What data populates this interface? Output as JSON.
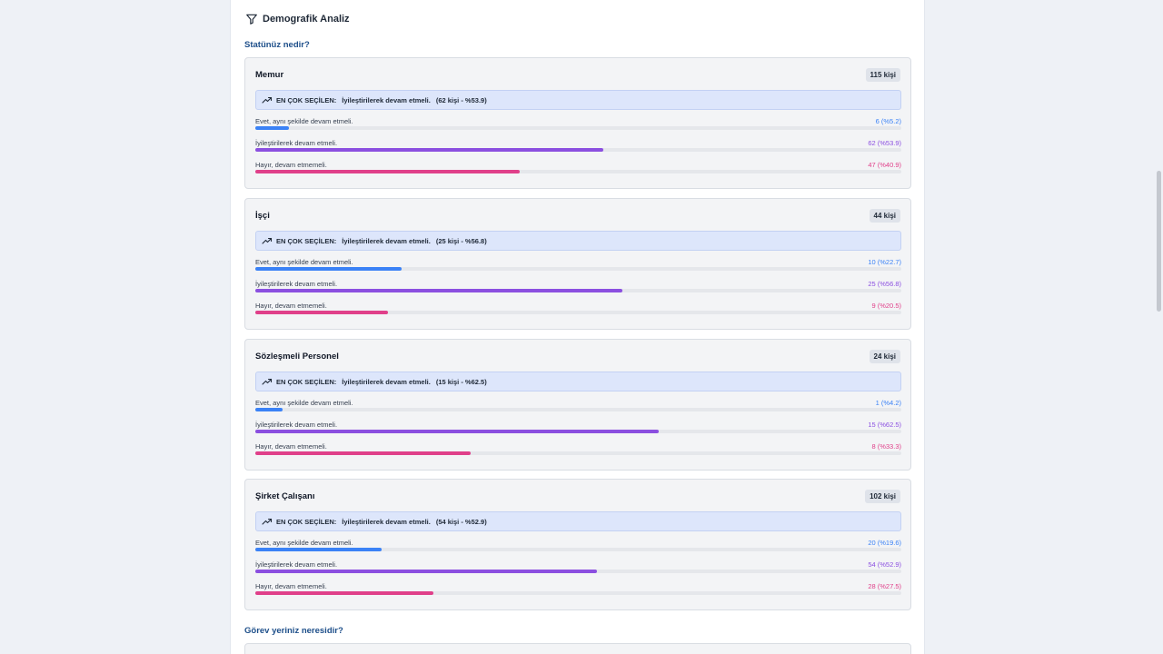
{
  "section": {
    "title": "Demografik Analiz",
    "icon": "filter-icon"
  },
  "question1": "Statünüz nedir?",
  "question2": "Görev yeriniz neresidir?",
  "top_choice_label": "EN ÇOK SEÇİLEN:",
  "colors": {
    "yes": "#3b82f6",
    "improve": "#8b4fe0",
    "no": "#e0408a"
  },
  "cards": [
    {
      "title": "Memur",
      "count": "115 kişi",
      "top_answer": "İyileştirilerek devam etmeli.",
      "top_detail": "(62 kişi - %53.9)",
      "options": [
        {
          "label": "Evet, aynı şekilde devam etmeli.",
          "value": "6 (%5.2)",
          "percent": 5.2
        },
        {
          "label": "İyileştirilerek devam etmeli.",
          "value": "62 (%53.9)",
          "percent": 53.9
        },
        {
          "label": "Hayır, devam etmemeli.",
          "value": "47 (%40.9)",
          "percent": 40.9
        }
      ]
    },
    {
      "title": "İşçi",
      "count": "44 kişi",
      "top_answer": "İyileştirilerek devam etmeli.",
      "top_detail": "(25 kişi - %56.8)",
      "options": [
        {
          "label": "Evet, aynı şekilde devam etmeli.",
          "value": "10 (%22.7)",
          "percent": 22.7
        },
        {
          "label": "İyileştirilerek devam etmeli.",
          "value": "25 (%56.8)",
          "percent": 56.8
        },
        {
          "label": "Hayır, devam etmemeli.",
          "value": "9 (%20.5)",
          "percent": 20.5
        }
      ]
    },
    {
      "title": "Sözleşmeli Personel",
      "count": "24 kişi",
      "top_answer": "İyileştirilerek devam etmeli.",
      "top_detail": "(15 kişi - %62.5)",
      "options": [
        {
          "label": "Evet, aynı şekilde devam etmeli.",
          "value": "1 (%4.2)",
          "percent": 4.2
        },
        {
          "label": "İyileştirilerek devam etmeli.",
          "value": "15 (%62.5)",
          "percent": 62.5
        },
        {
          "label": "Hayır, devam etmemeli.",
          "value": "8 (%33.3)",
          "percent": 33.3
        }
      ]
    },
    {
      "title": "Şirket Çalışanı",
      "count": "102 kişi",
      "top_answer": "İyileştirilerek devam etmeli.",
      "top_detail": "(54 kişi - %52.9)",
      "options": [
        {
          "label": "Evet, aynı şekilde devam etmeli.",
          "value": "20 (%19.6)",
          "percent": 19.6
        },
        {
          "label": "İyileştirilerek devam etmeli.",
          "value": "54 (%52.9)",
          "percent": 52.9
        },
        {
          "label": "Hayır, devam etmemeli.",
          "value": "28 (%27.5)",
          "percent": 27.5
        }
      ]
    }
  ]
}
